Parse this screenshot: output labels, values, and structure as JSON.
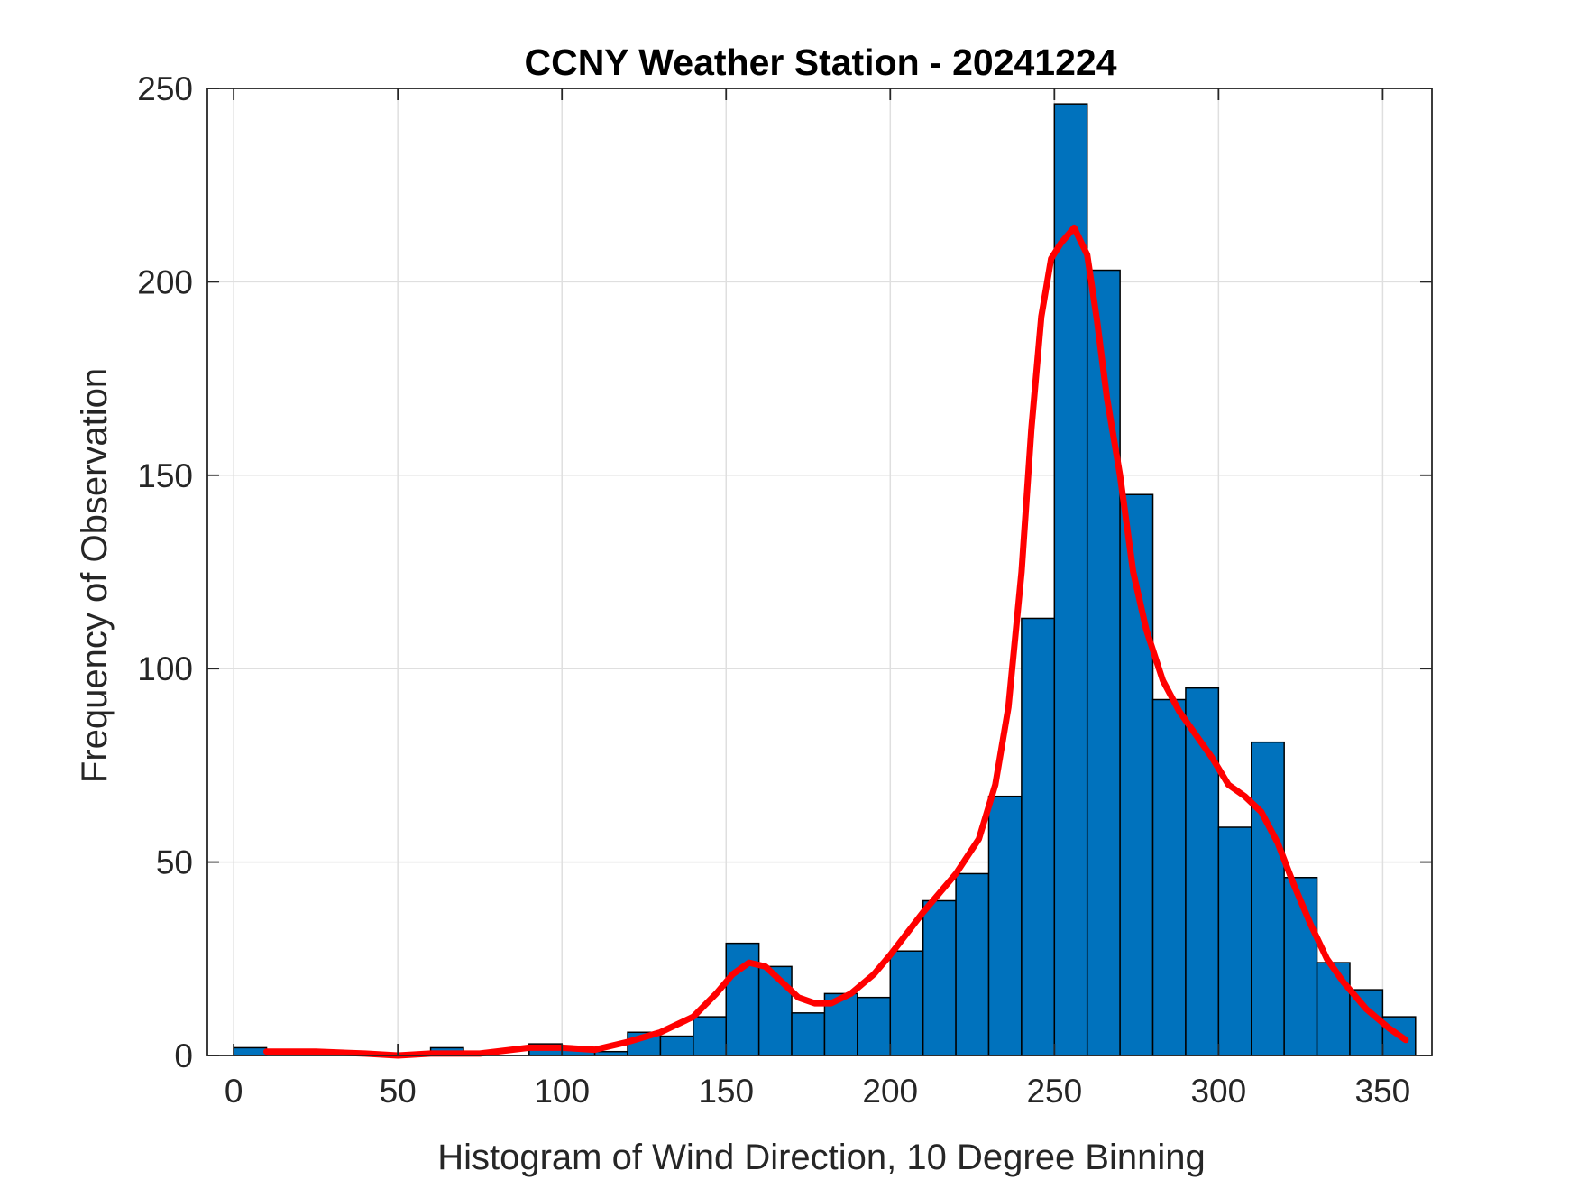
{
  "chart_data": {
    "type": "bar",
    "title": "CCNY Weather Station - 20241224",
    "xlabel": "Histogram of Wind Direction, 10 Degree Binning",
    "ylabel": "Frequency of Observation",
    "xlim": [
      -8,
      365
    ],
    "ylim": [
      0,
      250
    ],
    "x_ticks": [
      0,
      50,
      100,
      150,
      200,
      250,
      300,
      350
    ],
    "y_ticks": [
      0,
      50,
      100,
      150,
      200,
      250
    ],
    "grid": true,
    "legend": "none",
    "bin_width": 10,
    "bins": [
      {
        "start": 0,
        "value": 2
      },
      {
        "start": 10,
        "value": 0
      },
      {
        "start": 20,
        "value": 0
      },
      {
        "start": 30,
        "value": 0
      },
      {
        "start": 40,
        "value": 0
      },
      {
        "start": 50,
        "value": 0
      },
      {
        "start": 60,
        "value": 2
      },
      {
        "start": 70,
        "value": 0
      },
      {
        "start": 80,
        "value": 0
      },
      {
        "start": 90,
        "value": 3
      },
      {
        "start": 100,
        "value": 2
      },
      {
        "start": 110,
        "value": 1
      },
      {
        "start": 120,
        "value": 6
      },
      {
        "start": 130,
        "value": 5
      },
      {
        "start": 140,
        "value": 10
      },
      {
        "start": 150,
        "value": 29
      },
      {
        "start": 160,
        "value": 23
      },
      {
        "start": 170,
        "value": 11
      },
      {
        "start": 180,
        "value": 16
      },
      {
        "start": 190,
        "value": 15
      },
      {
        "start": 200,
        "value": 27
      },
      {
        "start": 210,
        "value": 40
      },
      {
        "start": 220,
        "value": 47
      },
      {
        "start": 230,
        "value": 67
      },
      {
        "start": 240,
        "value": 113
      },
      {
        "start": 250,
        "value": 246
      },
      {
        "start": 260,
        "value": 203
      },
      {
        "start": 270,
        "value": 145
      },
      {
        "start": 280,
        "value": 92
      },
      {
        "start": 290,
        "value": 95
      },
      {
        "start": 300,
        "value": 59
      },
      {
        "start": 310,
        "value": 81
      },
      {
        "start": 320,
        "value": 46
      },
      {
        "start": 330,
        "value": 24
      },
      {
        "start": 340,
        "value": 17
      },
      {
        "start": 350,
        "value": 10
      }
    ],
    "curve": {
      "x": [
        10,
        25,
        40,
        50,
        60,
        75,
        90,
        100,
        110,
        120,
        130,
        140,
        147,
        152,
        157,
        162,
        167,
        172,
        177,
        182,
        188,
        195,
        200,
        210,
        220,
        227,
        232,
        236,
        240,
        243,
        246,
        249,
        252,
        256,
        260,
        263,
        266,
        270,
        274,
        278,
        283,
        288,
        293,
        298,
        303,
        308,
        313,
        318,
        323,
        328,
        333,
        338,
        345,
        352,
        357
      ],
      "y": [
        1,
        1,
        0.5,
        0,
        0.5,
        0.5,
        2,
        2,
        1.5,
        3.5,
        6,
        10,
        16,
        21,
        24,
        23,
        19,
        15,
        13.5,
        13.5,
        16,
        21,
        26,
        37,
        47,
        56,
        70,
        90,
        125,
        162,
        191,
        206,
        210,
        214,
        207,
        190,
        170,
        150,
        125,
        110,
        97,
        89,
        83,
        77,
        70,
        67,
        63,
        55,
        44,
        34,
        25,
        19,
        12,
        7,
        4
      ]
    },
    "bar_color": "#0072BD",
    "curve_color": "#FF0000"
  }
}
